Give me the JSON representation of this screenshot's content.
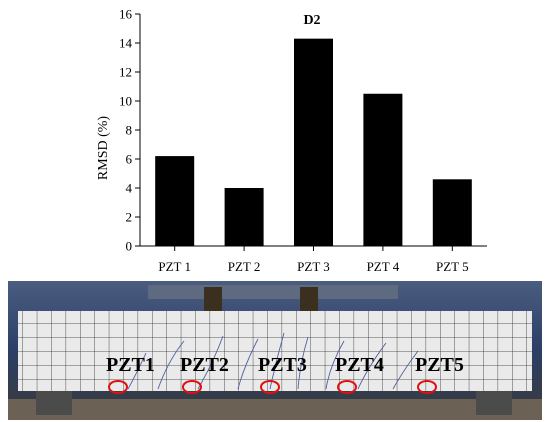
{
  "chart_data": {
    "type": "bar",
    "title": "D2",
    "xlabel": "",
    "ylabel": "RMSD (%)",
    "categories": [
      "PZT 1",
      "PZT 2",
      "PZT 3",
      "PZT 4",
      "PZT 5"
    ],
    "values": [
      6.2,
      4.0,
      14.3,
      10.5,
      4.6
    ],
    "ylim": [
      0,
      16
    ],
    "yticks": [
      0,
      2,
      4,
      6,
      8,
      10,
      12,
      14,
      16
    ],
    "grid": false,
    "bar_color": "#000000"
  },
  "photo": {
    "labels": [
      "PZT1",
      "PZT2",
      "PZT3",
      "PZT4",
      "PZT5"
    ],
    "marker_color": "#e01010"
  }
}
